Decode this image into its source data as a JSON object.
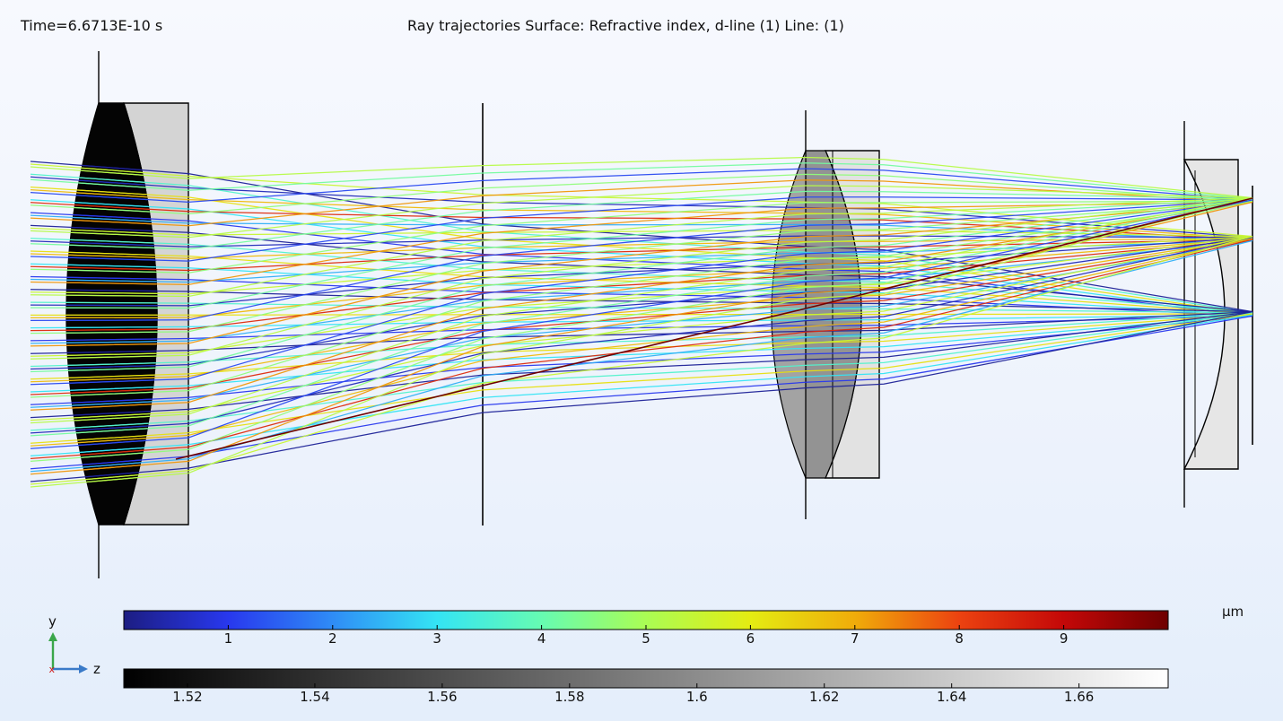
{
  "header": {
    "time_label": "Time=6.6713E-10 s",
    "title": "Ray trajectories  Surface: Refractive index, d-line (1)  Line:  (1)"
  },
  "axes_triad": {
    "y_label": "y",
    "z_label": "z",
    "x_marker": "x"
  },
  "colorbars": [
    {
      "name": "ray-color-scale",
      "unit": "µm",
      "range": [
        0,
        10
      ],
      "ticks": [
        1,
        2,
        3,
        4,
        5,
        6,
        7,
        8,
        9
      ],
      "tick_labels": [
        "1",
        "2",
        "3",
        "4",
        "5",
        "6",
        "7",
        "8",
        "9"
      ],
      "colors": [
        "#1c1d82",
        "#2838ee",
        "#2f8cf6",
        "#34e4f4",
        "#66fbb2",
        "#aafd54",
        "#e4ec12",
        "#f0ac0a",
        "#ec4210",
        "#c40808",
        "#6e0000"
      ]
    },
    {
      "name": "refractive-index-scale",
      "unit": "",
      "range": [
        1.51,
        1.674
      ],
      "ticks": [
        1.52,
        1.54,
        1.56,
        1.58,
        1.6,
        1.62,
        1.64,
        1.66
      ],
      "tick_labels": [
        "1.52",
        "1.54",
        "1.56",
        "1.58",
        "1.6",
        "1.62",
        "1.64",
        "1.66"
      ],
      "colors": [
        "#000000",
        "#ffffff"
      ]
    }
  ]
}
